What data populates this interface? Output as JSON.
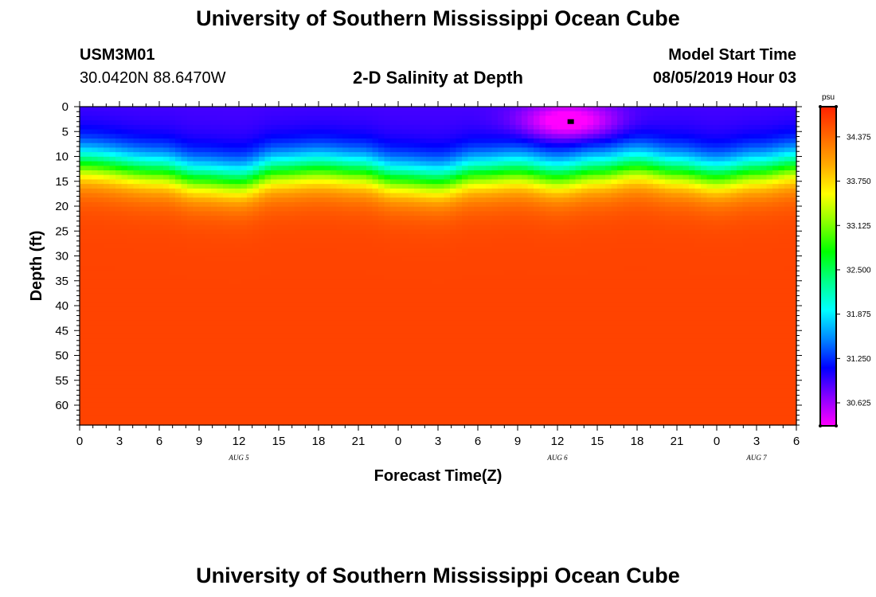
{
  "header": {
    "title": "University of Southern Mississippi Ocean Cube",
    "station_id": "USM3M01",
    "location": "30.0420N 88.6470W",
    "plot_title": "2-D Salinity at Depth",
    "model_start_label": "Model Start Time",
    "model_start_value": "08/05/2019 Hour 03"
  },
  "footer": {
    "title": "University of Southern Mississippi Ocean Cube"
  },
  "chart_data": {
    "type": "heatmap",
    "title": "2-D Salinity at Depth",
    "xlabel": "Forecast Time(Z)",
    "ylabel": "Depth (ft)",
    "x_tick_labels": [
      "0",
      "3",
      "6",
      "9",
      "12",
      "15",
      "18",
      "21",
      "0",
      "3",
      "6",
      "9",
      "12",
      "15",
      "18",
      "21",
      "0",
      "3",
      "6"
    ],
    "x_range_hours": [
      0,
      54
    ],
    "date_labels": [
      {
        "label": "AUG 5",
        "hour": 12
      },
      {
        "label": "AUG 6",
        "hour": 36
      },
      {
        "label": "AUG 7",
        "hour": 51
      }
    ],
    "y_ticks": [
      0,
      5,
      10,
      15,
      20,
      25,
      30,
      35,
      40,
      45,
      50,
      55,
      60
    ],
    "y_range": [
      0,
      64
    ],
    "y_inverted": true,
    "colorbar": {
      "unit": "psu",
      "ticks": [
        "34.375",
        "33.750",
        "33.125",
        "32.500",
        "31.875",
        "31.250",
        "30.625"
      ],
      "range": [
        30.3,
        34.8
      ],
      "colors": [
        "#ff00ff",
        "#8800ff",
        "#0000ff",
        "#0088ff",
        "#00ffff",
        "#00ff88",
        "#00ff00",
        "#88ff00",
        "#ffff00",
        "#ffaa00",
        "#ff6600",
        "#ff2200"
      ]
    },
    "field": {
      "surface_psu": 30.9,
      "deep_psu": 34.6,
      "halocline_depth_ft": [
        [
          0,
          11.5
        ],
        [
          6,
          13
        ],
        [
          9,
          14.5
        ],
        [
          12,
          15
        ],
        [
          15,
          13
        ],
        [
          18,
          12.5
        ],
        [
          21,
          13
        ],
        [
          24,
          14.5
        ],
        [
          27,
          15
        ],
        [
          30,
          13.5
        ],
        [
          33,
          13
        ],
        [
          36,
          14
        ],
        [
          39,
          13
        ],
        [
          42,
          12
        ],
        [
          45,
          13
        ],
        [
          48,
          14
        ],
        [
          51,
          13
        ],
        [
          54,
          12
        ]
      ],
      "surface_minimum": {
        "hour": 36.8,
        "depth_ft": 3,
        "psu": 30.4
      },
      "marker": {
        "hour": 37,
        "depth_ft": 3
      }
    }
  }
}
